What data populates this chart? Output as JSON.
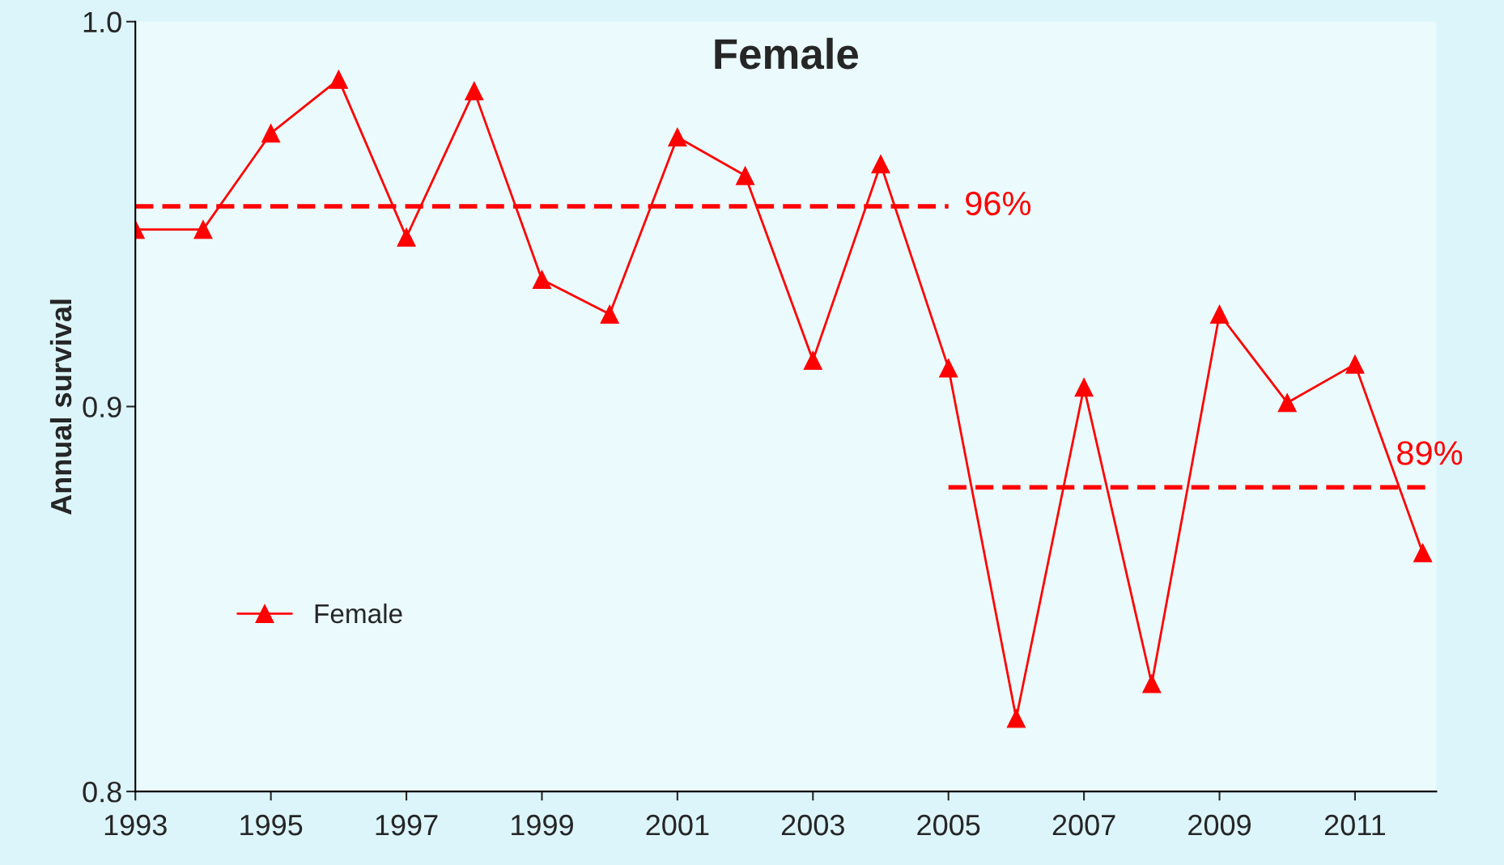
{
  "chart_data": {
    "type": "line",
    "title": "Female",
    "ylabel": "Annual survival",
    "x": [
      1993,
      1994,
      1995,
      1996,
      1997,
      1998,
      1999,
      2000,
      2001,
      2002,
      2003,
      2004,
      2005,
      2006,
      2007,
      2008,
      2009,
      2010,
      2011,
      2012
    ],
    "series": [
      {
        "name": "Female",
        "color": "#ff0000",
        "marker": "triangle",
        "line_style": "solid",
        "values": [
          0.946,
          0.946,
          0.971,
          0.985,
          0.944,
          0.982,
          0.933,
          0.924,
          0.97,
          0.96,
          0.912,
          0.963,
          0.91,
          0.819,
          0.905,
          0.828,
          0.924,
          0.901,
          0.911,
          0.862
        ]
      },
      {
        "type": "line",
        "color": "#ff0000",
        "marker": "none",
        "line_style": "dashed",
        "x": [
          1993,
          2005
        ],
        "values": [
          0.952,
          0.952
        ]
      },
      {
        "type": "line",
        "color": "#ff0000",
        "marker": "none",
        "line_style": "dashed",
        "x": [
          2005,
          2012.1
        ],
        "values": [
          0.879,
          0.879
        ]
      }
    ],
    "annotations": [
      {
        "text": "96%",
        "x": 2005,
        "y": 0.952
      },
      {
        "text": "89%",
        "x": 2012.1,
        "y": 0.879
      }
    ],
    "xlim": [
      1993,
      2012.2
    ],
    "xticks": [
      1993,
      1995,
      1997,
      1999,
      2001,
      2003,
      2005,
      2007,
      2009,
      2011
    ],
    "ylim": [
      0.8,
      1.0
    ],
    "yticks": [
      0.8,
      0.9,
      {
        "value": 1.0,
        "label": "1.0"
      }
    ],
    "grid": false,
    "legend": "lower left"
  }
}
